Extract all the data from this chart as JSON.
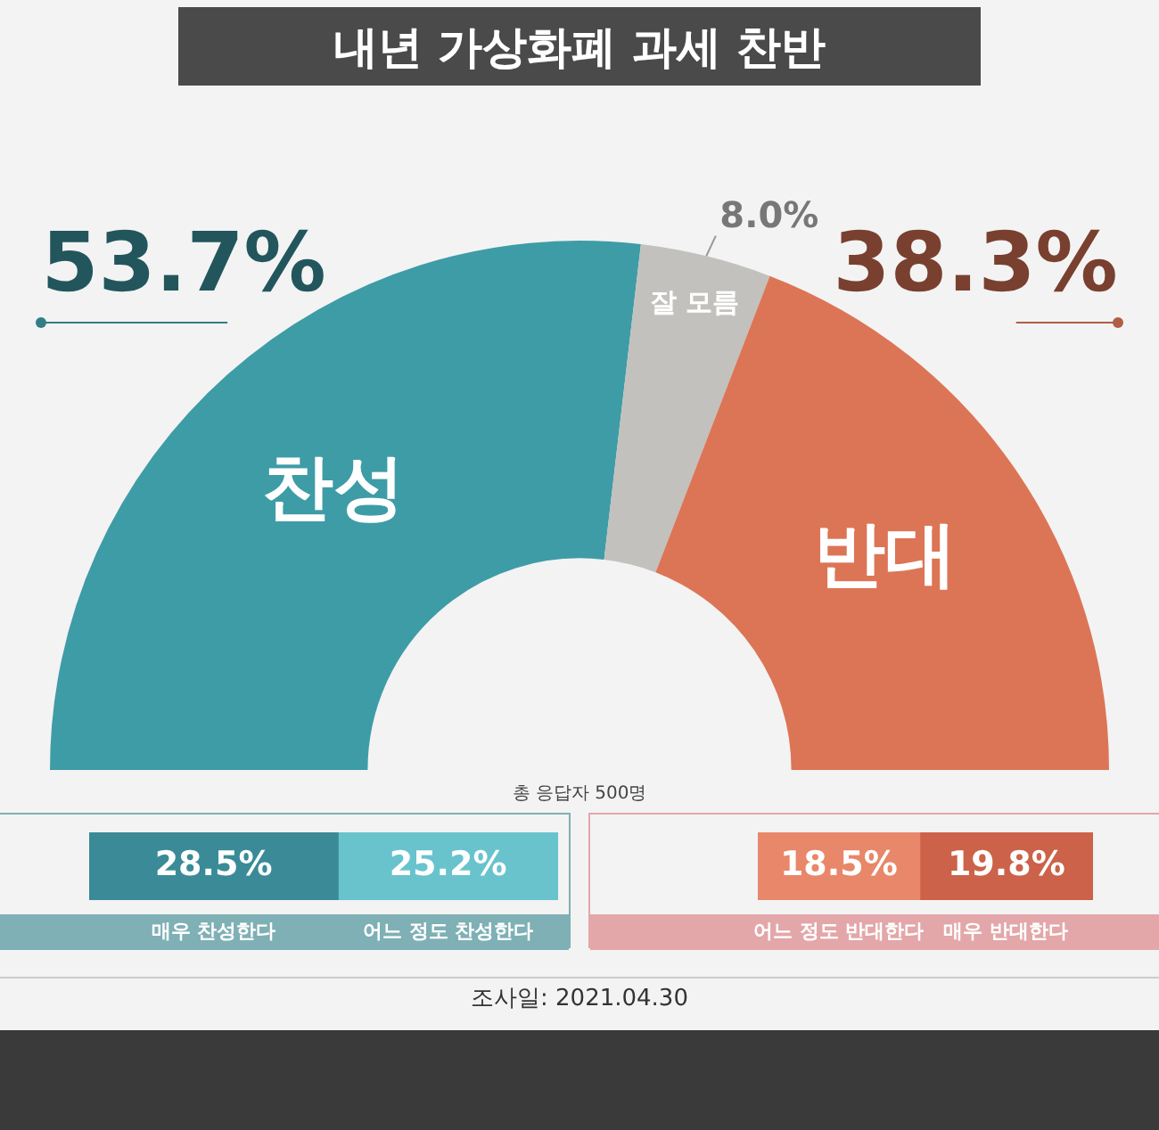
{
  "chart_data": [
    {
      "type": "donut",
      "title": "내년 가상화폐 과세 찬반",
      "categories": [
        "찬성",
        "잘 모름",
        "반대"
      ],
      "values": [
        53.7,
        8.0,
        38.3
      ],
      "colors": [
        "#3e9ca7",
        "#c2c1bd",
        "#dc7556"
      ],
      "value_labels": [
        "53.7%",
        "8.0%",
        "38.3%"
      ],
      "annotations": [
        "총 응답자 500명",
        "조사일: 2021.04.30"
      ]
    },
    {
      "type": "bar",
      "orientation": "horizontal",
      "stacked": true,
      "categories": [
        null
      ],
      "series": [
        {
          "name": "매우 찬성한다",
          "color": "#3a8b97",
          "values": [
            28.5
          ],
          "value_labels": [
            "28.5%"
          ]
        },
        {
          "name": "어느 정도 찬성한다",
          "color": "#68c3cd",
          "values": [
            25.2
          ],
          "value_labels": [
            "25.2%"
          ]
        }
      ]
    },
    {
      "type": "bar",
      "orientation": "horizontal",
      "stacked": true,
      "categories": [
        null
      ],
      "series": [
        {
          "name": "어느 정도 반대한다",
          "color": "#e8876a",
          "values": [
            18.5
          ],
          "value_labels": [
            "18.5%"
          ]
        },
        {
          "name": "매우 반대한다",
          "color": "#cc6249",
          "values": [
            19.8
          ],
          "value_labels": [
            "19.8%"
          ]
        }
      ]
    }
  ]
}
